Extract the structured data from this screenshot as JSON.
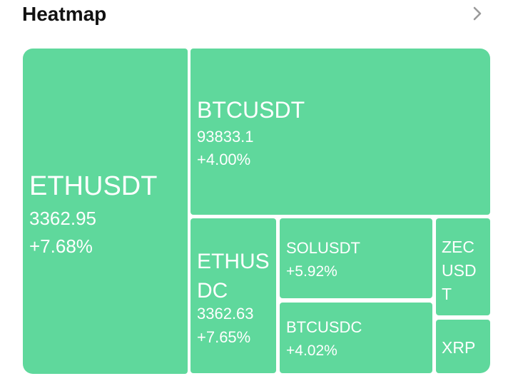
{
  "header": {
    "title": "Heatmap",
    "more_icon": "chevron-right-icon"
  },
  "colors": {
    "tile_green": "#5fd89c",
    "tile_text": "#ffffff",
    "title_text": "#111111",
    "chevron": "#9a9a9a"
  },
  "tiles": [
    {
      "symbol": "ETHUSDT",
      "price": "3362.95",
      "change": "+7.68%"
    },
    {
      "symbol": "BTCUSDT",
      "price": "93833.1",
      "change": "+4.00%"
    },
    {
      "symbol": "ETHUSDC",
      "price": "3362.63",
      "change": "+7.65%"
    },
    {
      "symbol": "SOLUSDT",
      "change": "+5.92%"
    },
    {
      "symbol": "BTCUSDC",
      "change": "+4.02%"
    },
    {
      "symbol": "ZECUSDT"
    },
    {
      "symbol": "XRP"
    }
  ]
}
